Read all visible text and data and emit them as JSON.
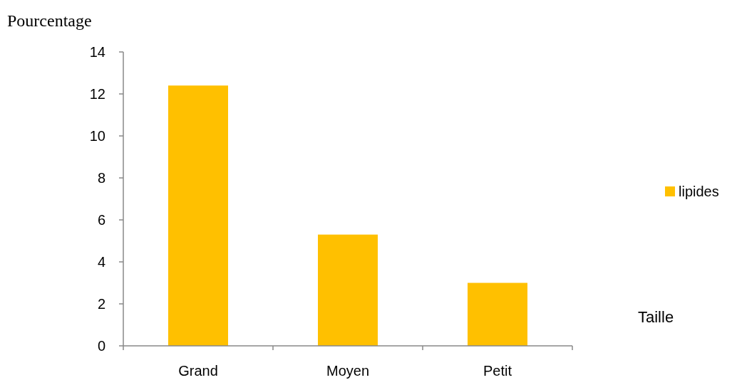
{
  "chart_data": {
    "type": "bar",
    "categories": [
      "Grand",
      "Moyen",
      "Petit"
    ],
    "series": [
      {
        "name": "lipides",
        "color": "#ffc000",
        "values": [
          12.4,
          5.3,
          3.0
        ]
      }
    ],
    "xlabel": "Taille",
    "ylabel": "Pourcentage",
    "ylim": [
      0,
      14
    ],
    "yticks": [
      0,
      2,
      4,
      6,
      8,
      10,
      12,
      14
    ],
    "grid": false,
    "legend": "right"
  }
}
